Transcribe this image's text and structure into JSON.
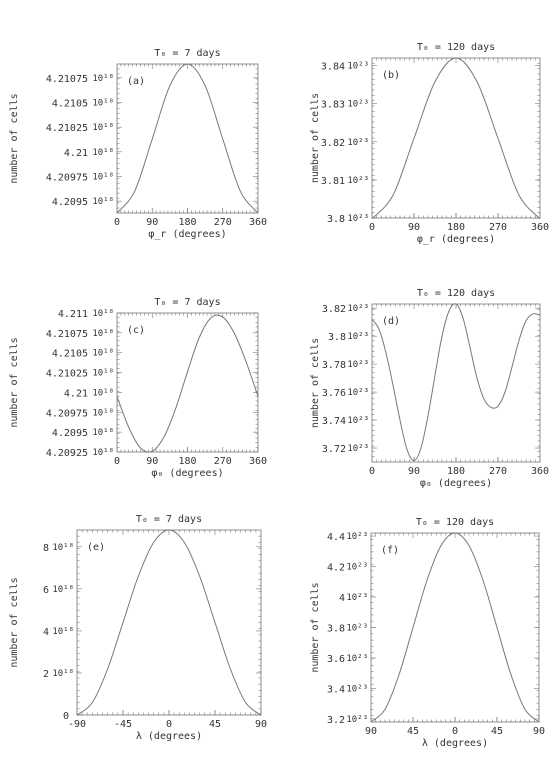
{
  "chart_data": [
    {
      "id": "a",
      "type": "line",
      "title": "T₀ = 7 days",
      "panel_label": "(a)",
      "xlabel": "φ_r (degrees)",
      "ylabel": "number of cells",
      "xlim": [
        0,
        360
      ],
      "x_ticks": [
        "0",
        "90",
        "180",
        "270",
        "360"
      ],
      "ylim": [
        4.20938,
        4.21089
      ],
      "y_ticks": [
        {
          "value": 4.2095,
          "label": "4.2095",
          "multiplier": "10¹⁸"
        },
        {
          "value": 4.20975,
          "label": "4.20975",
          "multiplier": "10¹⁸"
        },
        {
          "value": 4.21,
          "label": "4.21",
          "multiplier": "10¹⁸"
        },
        {
          "value": 4.21025,
          "label": "4.21025",
          "multiplier": "10¹⁸"
        },
        {
          "value": 4.2105,
          "label": "4.2105",
          "multiplier": "10¹⁸"
        },
        {
          "value": 4.21075,
          "label": "4.21075",
          "multiplier": "10¹⁸"
        }
      ],
      "series": [
        {
          "x": [
            0,
            45,
            90,
            135,
            180,
            225,
            270,
            315,
            360
          ],
          "y": [
            4.20938,
            4.2096,
            4.21013,
            4.21067,
            4.21089,
            4.21067,
            4.21013,
            4.2096,
            4.20938
          ]
        }
      ]
    },
    {
      "id": "b",
      "type": "line",
      "title": "T₀ = 120 days",
      "panel_label": "(b)",
      "xlabel": "φ_r (degrees)",
      "ylabel": "number of cells",
      "xlim": [
        0,
        360
      ],
      "x_ticks": [
        "0",
        "90",
        "180",
        "270",
        "360"
      ],
      "ylim": [
        3.8,
        3.842
      ],
      "y_ticks": [
        {
          "value": 3.8,
          "label": "3.8",
          "multiplier": "10²³"
        },
        {
          "value": 3.81,
          "label": "3.81",
          "multiplier": "10²³"
        },
        {
          "value": 3.82,
          "label": "3.82",
          "multiplier": "10²³"
        },
        {
          "value": 3.83,
          "label": "3.83",
          "multiplier": "10²³"
        },
        {
          "value": 3.84,
          "label": "3.84",
          "multiplier": "10²³"
        }
      ],
      "series": [
        {
          "x": [
            0,
            45,
            90,
            135,
            180,
            225,
            270,
            315,
            360
          ],
          "y": [
            3.7998,
            3.806,
            3.8209,
            3.8358,
            3.842,
            3.8358,
            3.8209,
            3.806,
            3.7998
          ]
        }
      ]
    },
    {
      "id": "c",
      "type": "line",
      "title": "T₀ = 7 days",
      "panel_label": "(c)",
      "xlabel": "φ₀ (degrees)",
      "ylabel": "number of cells",
      "xlim": [
        0,
        360
      ],
      "x_ticks": [
        "0",
        "90",
        "180",
        "270",
        "360"
      ],
      "ylim": [
        4.20925,
        4.211
      ],
      "y_ticks": [
        {
          "value": 4.20925,
          "label": "4.20925",
          "multiplier": "10¹⁸"
        },
        {
          "value": 4.2095,
          "label": "4.2095",
          "multiplier": "10¹⁸"
        },
        {
          "value": 4.20975,
          "label": "4.20975",
          "multiplier": "10¹⁸"
        },
        {
          "value": 4.21,
          "label": "4.21",
          "multiplier": "10¹⁸"
        },
        {
          "value": 4.21025,
          "label": "4.21025",
          "multiplier": "10¹⁸"
        },
        {
          "value": 4.2105,
          "label": "4.2105",
          "multiplier": "10¹⁸"
        },
        {
          "value": 4.21075,
          "label": "4.21075",
          "multiplier": "10¹⁸"
        },
        {
          "value": 4.211,
          "label": "4.211",
          "multiplier": "10¹⁸"
        }
      ],
      "series": [
        {
          "x": [
            0,
            30,
            60,
            90,
            120,
            150,
            180,
            210,
            240,
            270,
            300,
            330,
            360
          ],
          "y": [
            4.20995,
            4.20956,
            4.2093,
            4.20926,
            4.20944,
            4.2098,
            4.21026,
            4.21069,
            4.21094,
            4.21095,
            4.21074,
            4.21038,
            4.20995
          ]
        }
      ]
    },
    {
      "id": "d",
      "type": "line",
      "title": "T₀ = 120 days",
      "panel_label": "(d)",
      "xlabel": "φ₀ (degrees)",
      "ylabel": "number of cells",
      "xlim": [
        0,
        360
      ],
      "x_ticks": [
        "0",
        "90",
        "180",
        "270",
        "360"
      ],
      "ylim": [
        3.71,
        3.823
      ],
      "y_ticks": [
        {
          "value": 3.72,
          "label": "3.72",
          "multiplier": "10²³"
        },
        {
          "value": 3.74,
          "label": "3.74",
          "multiplier": "10²³"
        },
        {
          "value": 3.76,
          "label": "3.76",
          "multiplier": "10²³"
        },
        {
          "value": 3.78,
          "label": "3.78",
          "multiplier": "10²³"
        },
        {
          "value": 3.8,
          "label": "3.8",
          "multiplier": "10²³"
        },
        {
          "value": 3.82,
          "label": "3.82",
          "multiplier": "10²³"
        }
      ],
      "series": [
        {
          "x": [
            0,
            15,
            30,
            45,
            60,
            75,
            90,
            105,
            120,
            135,
            150,
            165,
            180,
            195,
            210,
            225,
            240,
            255,
            270,
            285,
            300,
            315,
            330,
            345,
            360
          ],
          "y": [
            3.812,
            3.805,
            3.788,
            3.765,
            3.74,
            3.719,
            3.711,
            3.72,
            3.743,
            3.772,
            3.8,
            3.818,
            3.823,
            3.813,
            3.792,
            3.77,
            3.755,
            3.749,
            3.75,
            3.76,
            3.778,
            3.797,
            3.811,
            3.816,
            3.815
          ]
        }
      ]
    },
    {
      "id": "e",
      "type": "line",
      "title": "T₀ = 7 days",
      "panel_label": "(e)",
      "xlabel": "λ (degrees)",
      "ylabel": "number of cells",
      "xlim": [
        -90,
        90
      ],
      "x_ticks": [
        "-90",
        "-45",
        "0",
        "45",
        "90"
      ],
      "ylim": [
        0,
        8.8
      ],
      "y_ticks": [
        {
          "value": 0,
          "label": "0",
          "multiplier": ""
        },
        {
          "value": 2,
          "label": "2",
          "multiplier": "10¹⁸"
        },
        {
          "value": 4,
          "label": "4",
          "multiplier": "10¹⁸"
        },
        {
          "value": 6,
          "label": "6",
          "multiplier": "10¹⁸"
        },
        {
          "value": 8,
          "label": "8",
          "multiplier": "10¹⁸"
        }
      ],
      "series": [
        {
          "x": [
            -90,
            -75,
            -60,
            -45,
            -30,
            -15,
            0,
            15,
            30,
            45,
            60,
            75,
            90
          ],
          "y": [
            0,
            0.59,
            2.2,
            4.4,
            6.6,
            8.21,
            8.8,
            8.21,
            6.6,
            4.4,
            2.2,
            0.59,
            0
          ]
        }
      ]
    },
    {
      "id": "f",
      "type": "line",
      "title": "T₀ = 120 days",
      "panel_label": "(f)",
      "xlabel": "λ (degrees)",
      "ylabel": "number of cells",
      "xlim": [
        -90,
        90
      ],
      "x_ticks": [
        "90",
        "45",
        "0",
        "45",
        "90"
      ],
      "ylim": [
        3.18,
        4.42
      ],
      "y_ticks": [
        {
          "value": 3.2,
          "label": "3.2",
          "multiplier": "10²³"
        },
        {
          "value": 3.4,
          "label": "3.4",
          "multiplier": "10²³"
        },
        {
          "value": 3.6,
          "label": "3.6",
          "multiplier": "10²³"
        },
        {
          "value": 3.8,
          "label": "3.8",
          "multiplier": "10²³"
        },
        {
          "value": 4,
          "label": "4",
          "multiplier": "10²³"
        },
        {
          "value": 4.2,
          "label": "4.2",
          "multiplier": "10²³"
        },
        {
          "value": 4.4,
          "label": "4.4",
          "multiplier": "10²³"
        }
      ],
      "series": [
        {
          "x": [
            -90,
            -75,
            -60,
            -45,
            -30,
            -15,
            0,
            15,
            30,
            45,
            60,
            75,
            90
          ],
          "y": [
            3.18,
            3.263,
            3.49,
            3.8,
            4.11,
            4.337,
            4.42,
            4.337,
            4.11,
            3.8,
            3.49,
            3.263,
            3.18
          ]
        }
      ]
    }
  ]
}
